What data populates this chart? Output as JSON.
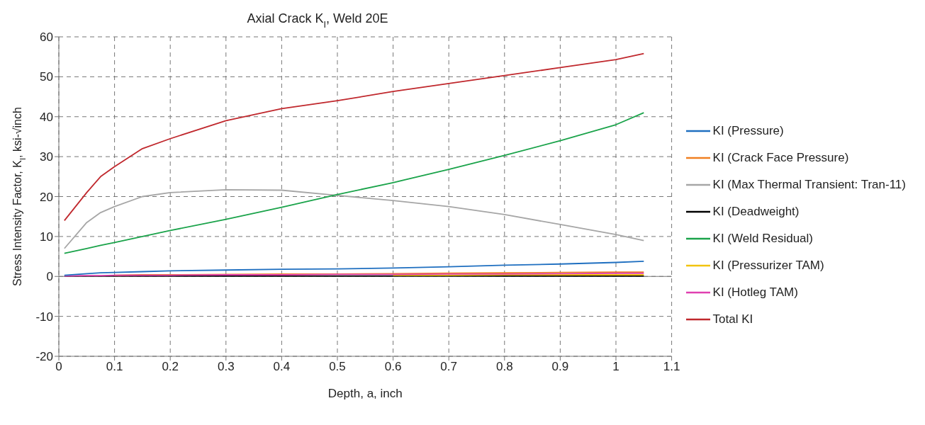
{
  "chart_data": {
    "type": "line",
    "title": "Axial Crack K$_{I}$, Weld 20E",
    "xlabel": "Depth, a, inch",
    "ylabel": "Stress Intensity Factor, K$_{I}$, ksi-√inch",
    "x": [
      0.01,
      0.05,
      0.075,
      0.1,
      0.15,
      0.2,
      0.3,
      0.4,
      0.5,
      0.6,
      0.7,
      0.8,
      0.9,
      1.0,
      1.05
    ],
    "series": [
      {
        "name": "KI (Pressure)",
        "color": "#1f6fc0",
        "values": [
          0.3,
          0.7,
          0.9,
          1.0,
          1.2,
          1.4,
          1.6,
          1.8,
          1.9,
          2.1,
          2.4,
          2.8,
          3.1,
          3.5,
          3.8
        ]
      },
      {
        "name": "KI (Crack Face Pressure)",
        "color": "#f07f20",
        "values": [
          null,
          null,
          null,
          0.3,
          0.4,
          0.4,
          0.5,
          0.6,
          0.6,
          0.7,
          0.8,
          0.9,
          1.0,
          1.1,
          1.1
        ]
      },
      {
        "name": "KI (Max Thermal Transient: Tran-11)",
        "color": "#a6a6a6",
        "values": [
          7,
          13.5,
          16,
          17.5,
          20,
          21,
          21.7,
          21.6,
          20.3,
          19,
          17.5,
          15.5,
          13,
          10.5,
          9
        ]
      },
      {
        "name": "KI (Deadweight)",
        "color": "#000000",
        "values": [
          0.1,
          0.1,
          0.1,
          0.1,
          0.1,
          0.1,
          0.1,
          0.1,
          0.1,
          0.1,
          0.1,
          0.1,
          0.1,
          0.1,
          0.1
        ]
      },
      {
        "name": "KI (Weld Residual)",
        "color": "#1aa34a",
        "values": [
          5.8,
          7,
          7.8,
          8.5,
          10,
          11.5,
          14.3,
          17.3,
          20.5,
          23.5,
          26.8,
          30.3,
          34,
          38,
          41
        ]
      },
      {
        "name": "KI (Pressurizer TAM)",
        "color": "#f2c40f",
        "values": [
          null,
          null,
          null,
          null,
          null,
          null,
          null,
          null,
          null,
          0.3,
          0.3,
          0.4,
          0.4,
          0.4,
          0.4
        ]
      },
      {
        "name": "KI (Hotleg TAM)",
        "color": "#e040b0",
        "values": [
          0.1,
          0.2,
          0.2,
          0.3,
          0.3,
          0.3,
          0.4,
          0.4,
          0.5,
          0.5,
          0.6,
          0.6,
          0.7,
          0.8,
          0.8
        ]
      },
      {
        "name": "Total KI",
        "color": "#c0282d",
        "values": [
          14,
          21,
          25,
          27.5,
          32,
          34.5,
          39,
          42,
          44,
          46.3,
          48.3,
          50.3,
          52.3,
          54.3,
          55.8
        ]
      }
    ],
    "xlim": [
      0,
      1.1
    ],
    "xticks": [
      0,
      0.1,
      0.2,
      0.3,
      0.4,
      0.5,
      0.6,
      0.7,
      0.8,
      0.9,
      1.0,
      1.1
    ],
    "ylim": [
      -20,
      60
    ],
    "yticks": [
      -20,
      -10,
      0,
      10,
      20,
      30,
      40,
      50,
      60
    ],
    "grid": true,
    "legend": "right",
    "marker": "none",
    "line_style": "solid"
  }
}
